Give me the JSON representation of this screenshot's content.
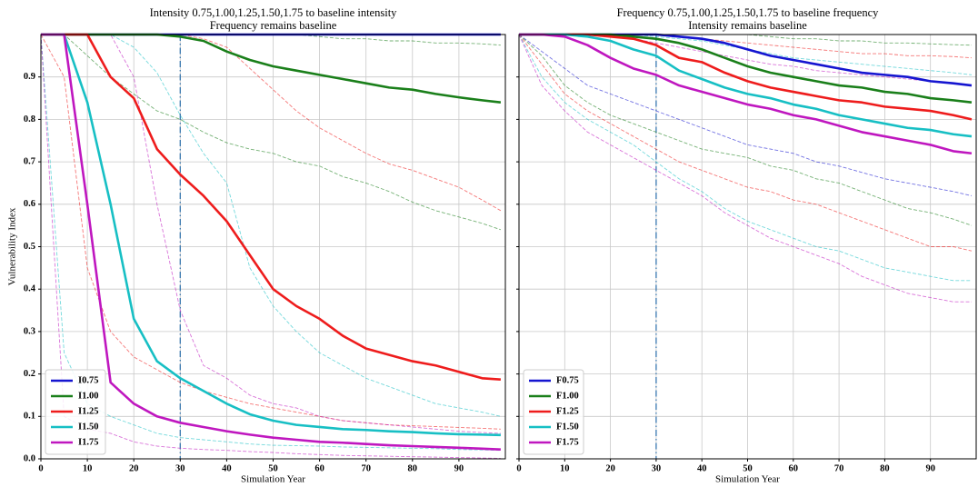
{
  "chart_data": [
    {
      "type": "line",
      "title": "Intensity 0.75,1.00,1.25,1.50,1.75 to baseline intensity",
      "subtitle": "Frequency remains baseline",
      "xlabel": "Simulation Year",
      "ylabel": "Vulnerability Index",
      "x": [
        0,
        5,
        10,
        15,
        20,
        25,
        30,
        35,
        40,
        45,
        50,
        55,
        60,
        65,
        70,
        75,
        80,
        85,
        90,
        95,
        99
      ],
      "xlim": [
        0,
        100
      ],
      "ylim": [
        0,
        1
      ],
      "xticks": [
        0,
        10,
        20,
        30,
        40,
        50,
        60,
        70,
        80,
        90
      ],
      "yticks": [
        {
          "value": 0,
          "label": "0.0"
        },
        0.1,
        0.2,
        0.3,
        0.4,
        0.5,
        0.6,
        0.7,
        0.8,
        0.9
      ],
      "grid": true,
      "legend": "lower left",
      "vline": 30,
      "vline_color": "#3a78b0",
      "series": [
        {
          "color": "#1a7f1a",
          "linestyle": "dashed",
          "values": [
            1,
            1,
            1,
            1,
            1,
            1,
            1,
            1,
            1,
            1,
            1,
            1,
            0.995,
            0.99,
            0.99,
            0.985,
            0.985,
            0.98,
            0.98,
            0.978,
            0.975
          ]
        },
        {
          "color": "#1a7f1a",
          "linestyle": "dashed",
          "values": [
            1,
            1,
            0.95,
            0.9,
            0.86,
            0.82,
            0.8,
            0.77,
            0.745,
            0.73,
            0.72,
            0.7,
            0.69,
            0.665,
            0.65,
            0.63,
            0.605,
            0.585,
            0.57,
            0.555,
            0.54
          ]
        },
        {
          "color": "#ee1c1c",
          "linestyle": "dashed",
          "values": [
            1,
            1,
            1,
            1,
            1,
            1,
            1,
            0.99,
            0.97,
            0.92,
            0.87,
            0.82,
            0.78,
            0.75,
            0.72,
            0.695,
            0.68,
            0.66,
            0.64,
            0.61,
            0.585
          ]
        },
        {
          "color": "#ee1c1c",
          "linestyle": "dashed",
          "values": [
            1,
            0.9,
            0.45,
            0.3,
            0.24,
            0.21,
            0.18,
            0.16,
            0.145,
            0.13,
            0.12,
            0.11,
            0.1,
            0.09,
            0.085,
            0.08,
            0.078,
            0.076,
            0.074,
            0.072,
            0.07
          ]
        },
        {
          "color": "#17bfc4",
          "linestyle": "dashed",
          "values": [
            1,
            1,
            1,
            1,
            0.97,
            0.91,
            0.81,
            0.72,
            0.65,
            0.45,
            0.36,
            0.3,
            0.25,
            0.22,
            0.19,
            0.17,
            0.15,
            0.13,
            0.12,
            0.11,
            0.1
          ]
        },
        {
          "color": "#17bfc4",
          "linestyle": "dashed",
          "values": [
            1,
            0.25,
            0.13,
            0.1,
            0.08,
            0.06,
            0.05,
            0.045,
            0.04,
            0.035,
            0.032,
            0.031,
            0.03,
            0.028,
            0.027,
            0.026,
            0.025,
            0.024,
            0.022,
            0.021,
            0.02
          ]
        },
        {
          "color": "#bf17bf",
          "linestyle": "dashed",
          "values": [
            1,
            1,
            1,
            1,
            0.9,
            0.6,
            0.35,
            0.22,
            0.19,
            0.15,
            0.13,
            0.12,
            0.1,
            0.09,
            0.085,
            0.08,
            0.075,
            0.07,
            0.065,
            0.062,
            0.06
          ]
        },
        {
          "color": "#bf17bf",
          "linestyle": "dashed",
          "values": [
            1,
            0.1,
            0.07,
            0.06,
            0.04,
            0.03,
            0.025,
            0.022,
            0.02,
            0.017,
            0.015,
            0.012,
            0.01,
            0.008,
            0.007,
            0.006,
            0.005,
            0.004,
            0.003,
            0.002,
            0.001
          ]
        },
        {
          "name": "I0.75",
          "color": "#1515d0",
          "values": [
            1,
            1,
            1,
            1,
            1,
            1,
            1,
            1,
            1,
            1,
            1,
            1,
            1,
            1,
            1,
            1,
            1,
            1,
            1,
            1,
            1
          ]
        },
        {
          "name": "I1.00",
          "color": "#1a7f1a",
          "values": [
            1,
            1,
            1,
            1,
            1,
            1,
            0.995,
            0.985,
            0.96,
            0.94,
            0.925,
            0.915,
            0.905,
            0.895,
            0.885,
            0.875,
            0.87,
            0.86,
            0.852,
            0.845,
            0.84
          ]
        },
        {
          "name": "I1.25",
          "color": "#ee1c1c",
          "values": [
            1,
            1,
            1,
            0.9,
            0.85,
            0.73,
            0.67,
            0.62,
            0.56,
            0.48,
            0.4,
            0.36,
            0.33,
            0.29,
            0.26,
            0.245,
            0.23,
            0.22,
            0.205,
            0.19,
            0.187
          ]
        },
        {
          "name": "I1.50",
          "color": "#17bfc4",
          "values": [
            1,
            1,
            0.84,
            0.6,
            0.33,
            0.23,
            0.19,
            0.16,
            0.13,
            0.105,
            0.09,
            0.08,
            0.075,
            0.07,
            0.068,
            0.065,
            0.063,
            0.06,
            0.058,
            0.057,
            0.056
          ]
        },
        {
          "name": "I1.75",
          "color": "#bf17bf",
          "values": [
            1,
            1,
            0.6,
            0.18,
            0.13,
            0.1,
            0.085,
            0.075,
            0.065,
            0.057,
            0.05,
            0.045,
            0.04,
            0.038,
            0.035,
            0.032,
            0.03,
            0.028,
            0.026,
            0.024,
            0.022
          ]
        }
      ]
    },
    {
      "type": "line",
      "title": "Frequency 0.75,1.00,1.25,1.50,1.75 to baseline frequency",
      "subtitle": "Intensity remains baseline",
      "xlabel": "Simulation Year",
      "x": [
        0,
        5,
        10,
        15,
        20,
        25,
        30,
        35,
        40,
        45,
        50,
        55,
        60,
        65,
        70,
        75,
        80,
        85,
        90,
        95,
        99
      ],
      "xlim": [
        0,
        100
      ],
      "ylim": [
        0,
        1
      ],
      "xticks": [
        0,
        10,
        20,
        30,
        40,
        50,
        60,
        70,
        80,
        90
      ],
      "yticks": [
        0,
        0.1,
        0.2,
        0.3,
        0.4,
        0.5,
        0.6,
        0.7,
        0.8,
        0.9
      ],
      "grid": true,
      "legend": "lower left",
      "vline": 30,
      "vline_color": "#3a78b0",
      "series": [
        {
          "color": "#1515d0",
          "linestyle": "dashed",
          "values": [
            1,
            0.96,
            0.92,
            0.88,
            0.86,
            0.84,
            0.82,
            0.8,
            0.78,
            0.76,
            0.74,
            0.73,
            0.72,
            0.7,
            0.69,
            0.675,
            0.66,
            0.65,
            0.64,
            0.63,
            0.62
          ]
        },
        {
          "color": "#1a7f1a",
          "linestyle": "dashed",
          "values": [
            1,
            1,
            1,
            1,
            1,
            1,
            1,
            1,
            1,
            1,
            1,
            0.995,
            0.99,
            0.99,
            0.985,
            0.985,
            0.98,
            0.98,
            0.978,
            0.976,
            0.975
          ]
        },
        {
          "color": "#1a7f1a",
          "linestyle": "dashed",
          "values": [
            1,
            0.95,
            0.88,
            0.84,
            0.81,
            0.79,
            0.77,
            0.75,
            0.73,
            0.72,
            0.71,
            0.69,
            0.68,
            0.66,
            0.65,
            0.63,
            0.61,
            0.59,
            0.58,
            0.565,
            0.55
          ]
        },
        {
          "color": "#ee1c1c",
          "linestyle": "dashed",
          "values": [
            1,
            1,
            1,
            1,
            1,
            1,
            1,
            0.995,
            0.99,
            0.985,
            0.98,
            0.975,
            0.97,
            0.965,
            0.96,
            0.955,
            0.955,
            0.95,
            0.95,
            0.948,
            0.945
          ]
        },
        {
          "color": "#ee1c1c",
          "linestyle": "dashed",
          "values": [
            1,
            0.93,
            0.86,
            0.82,
            0.79,
            0.76,
            0.73,
            0.7,
            0.68,
            0.66,
            0.64,
            0.63,
            0.61,
            0.6,
            0.58,
            0.56,
            0.54,
            0.52,
            0.5,
            0.5,
            0.49
          ]
        },
        {
          "color": "#17bfc4",
          "linestyle": "dashed",
          "values": [
            1,
            1,
            1,
            1,
            1,
            1,
            0.995,
            0.99,
            0.985,
            0.975,
            0.965,
            0.955,
            0.945,
            0.94,
            0.935,
            0.93,
            0.925,
            0.92,
            0.915,
            0.91,
            0.905
          ]
        },
        {
          "color": "#17bfc4",
          "linestyle": "dashed",
          "values": [
            1,
            0.9,
            0.84,
            0.8,
            0.77,
            0.74,
            0.7,
            0.66,
            0.63,
            0.59,
            0.56,
            0.54,
            0.52,
            0.5,
            0.49,
            0.47,
            0.45,
            0.44,
            0.43,
            0.42,
            0.42
          ]
        },
        {
          "color": "#bf17bf",
          "linestyle": "dashed",
          "values": [
            1,
            1,
            1,
            1,
            0.995,
            0.99,
            0.98,
            0.97,
            0.96,
            0.95,
            0.94,
            0.93,
            0.925,
            0.915,
            0.91,
            0.905,
            0.9,
            0.895,
            0.89,
            0.885,
            0.88
          ]
        },
        {
          "color": "#bf17bf",
          "linestyle": "dashed",
          "values": [
            1,
            0.88,
            0.82,
            0.77,
            0.74,
            0.71,
            0.68,
            0.65,
            0.62,
            0.58,
            0.55,
            0.52,
            0.5,
            0.48,
            0.46,
            0.43,
            0.41,
            0.39,
            0.38,
            0.37,
            0.37
          ]
        },
        {
          "name": "F0.75",
          "color": "#1515d0",
          "values": [
            1,
            1,
            1,
            1,
            1,
            1,
            1,
            0.995,
            0.99,
            0.98,
            0.965,
            0.95,
            0.94,
            0.93,
            0.92,
            0.91,
            0.905,
            0.9,
            0.89,
            0.885,
            0.88
          ]
        },
        {
          "name": "F1.00",
          "color": "#1a7f1a",
          "values": [
            1,
            1,
            1,
            1,
            1,
            0.995,
            0.99,
            0.98,
            0.965,
            0.945,
            0.925,
            0.91,
            0.9,
            0.89,
            0.88,
            0.875,
            0.865,
            0.86,
            0.85,
            0.845,
            0.84
          ]
        },
        {
          "name": "F1.25",
          "color": "#ee1c1c",
          "values": [
            1,
            1,
            1,
            1,
            0.995,
            0.99,
            0.975,
            0.945,
            0.935,
            0.91,
            0.89,
            0.875,
            0.865,
            0.855,
            0.845,
            0.84,
            0.83,
            0.825,
            0.82,
            0.81,
            0.8
          ]
        },
        {
          "name": "F1.50",
          "color": "#17bfc4",
          "values": [
            1,
            1,
            1,
            0.995,
            0.985,
            0.965,
            0.95,
            0.915,
            0.895,
            0.875,
            0.86,
            0.85,
            0.835,
            0.825,
            0.81,
            0.8,
            0.79,
            0.78,
            0.775,
            0.765,
            0.76
          ]
        },
        {
          "name": "F1.75",
          "color": "#bf17bf",
          "values": [
            1,
            1,
            0.995,
            0.975,
            0.945,
            0.92,
            0.905,
            0.88,
            0.865,
            0.85,
            0.835,
            0.825,
            0.81,
            0.8,
            0.785,
            0.77,
            0.76,
            0.75,
            0.74,
            0.725,
            0.72
          ]
        }
      ]
    }
  ]
}
